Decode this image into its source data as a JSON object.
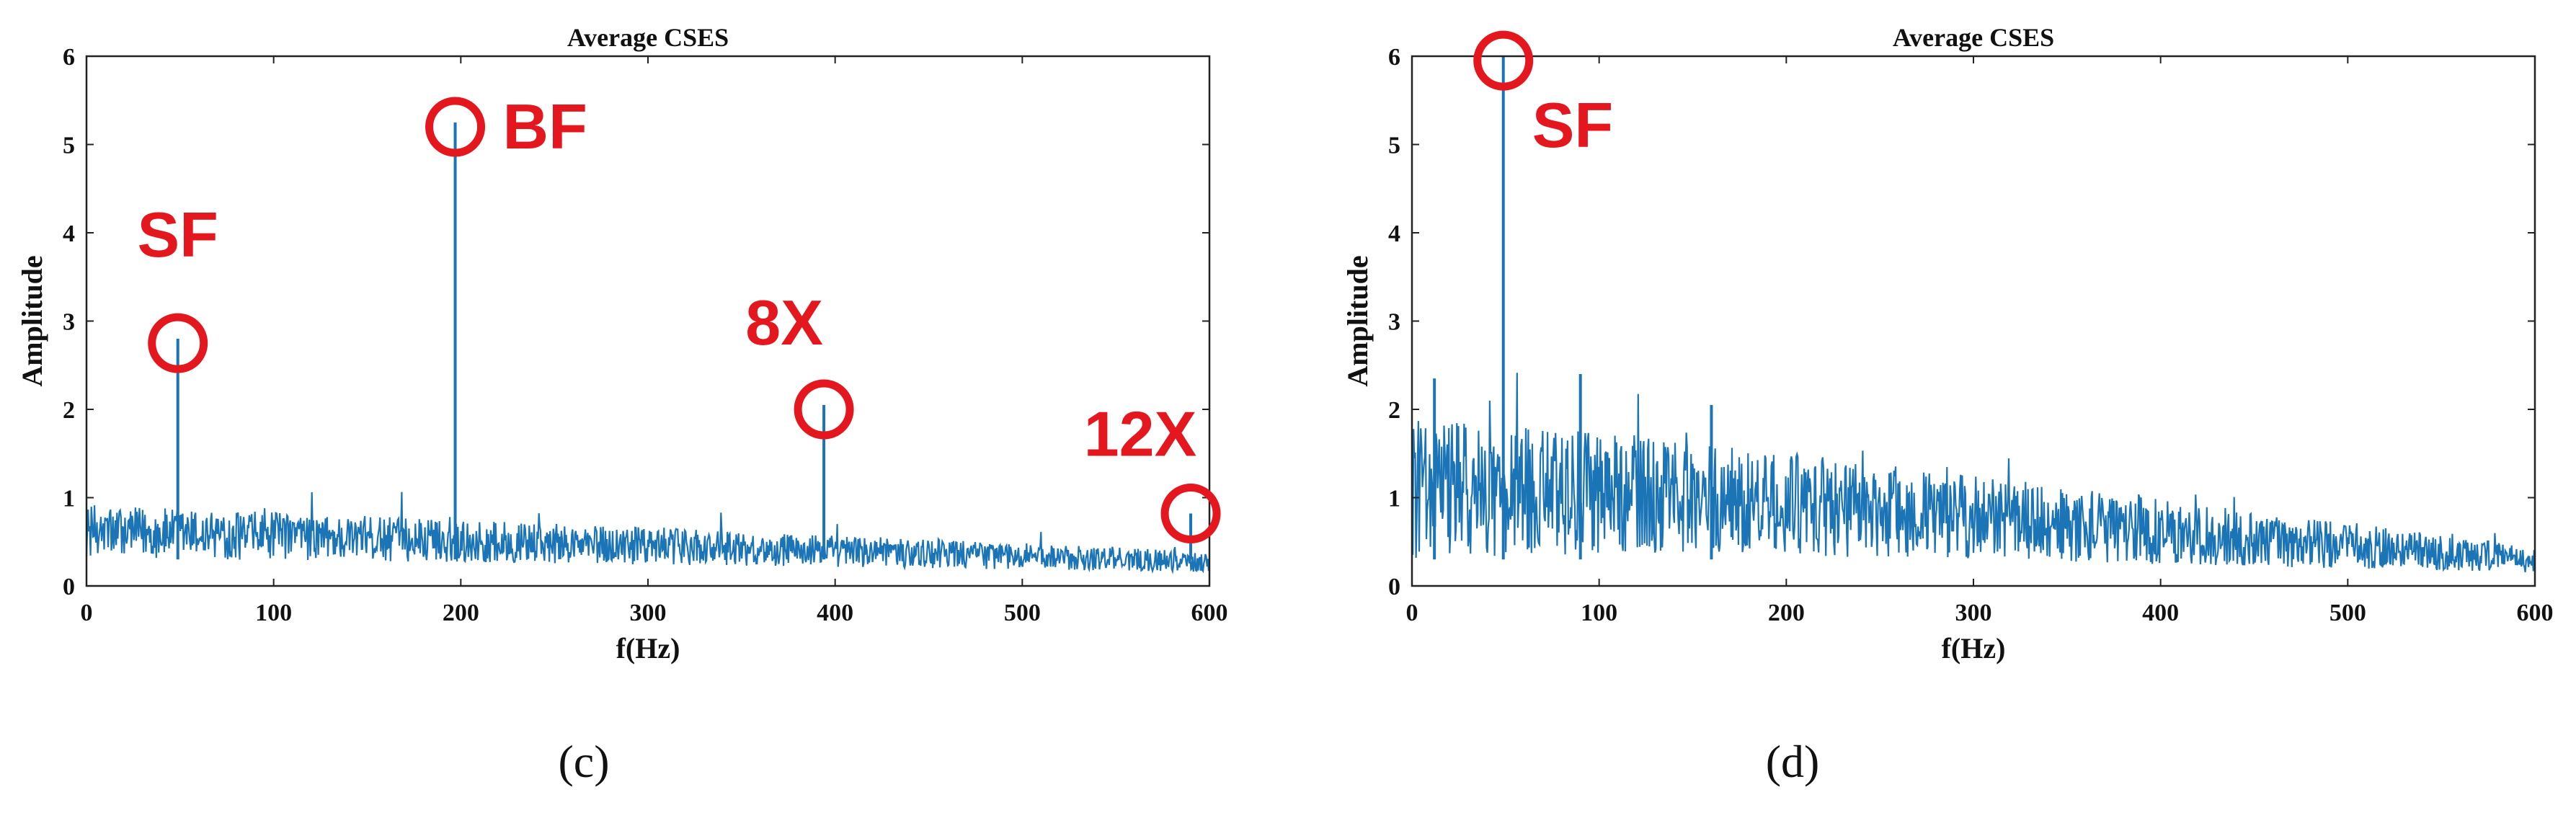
{
  "chart_data": [
    {
      "type": "line",
      "title": "Average CSES",
      "xlabel": "f(Hz)",
      "ylabel": "Amplitude",
      "xlim": [
        0,
        600
      ],
      "ylim": [
        0,
        6
      ],
      "xticks": [
        "0",
        "100",
        "200",
        "300",
        "400",
        "500",
        "600"
      ],
      "yticks": [
        "0",
        "1",
        "2",
        "3",
        "4",
        "5",
        "6"
      ],
      "grid": false,
      "line_color": "#1a74b6",
      "noise_envelope": {
        "start": 0.62,
        "end": 0.28,
        "spread_start": 0.3,
        "spread_end": 0.12
      },
      "peaks": [
        {
          "x": 48.8,
          "y": 2.8
        },
        {
          "x": 197,
          "y": 5.25
        },
        {
          "x": 394,
          "y": 2.05
        },
        {
          "x": 590,
          "y": 0.82
        }
      ],
      "annotations": [
        {
          "text": "SF",
          "x": 48.8,
          "y": 2.75
        },
        {
          "text": "BF",
          "x": 197,
          "y": 5.2
        },
        {
          "text": "8X",
          "x": 394,
          "y": 2.0
        },
        {
          "text": "12X",
          "x": 590,
          "y": 0.82
        }
      ],
      "caption": "(c)"
    },
    {
      "type": "line",
      "title": "Average CSES",
      "xlabel": "f(Hz)",
      "ylabel": "Amplitude",
      "xlim": [
        0,
        600
      ],
      "ylim": [
        0,
        6
      ],
      "xticks": [
        "0",
        "100",
        "200",
        "300",
        "400",
        "500",
        "600"
      ],
      "yticks": [
        "0",
        "1",
        "2",
        "3",
        "4",
        "5",
        "6"
      ],
      "grid": false,
      "line_color": "#1a74b6",
      "noise_envelope": {
        "start": 1.1,
        "mid_x": 120,
        "mid": 1.05,
        "end": 0.3,
        "spread_start": 0.8,
        "spread_end": 0.15
      },
      "peaks": [
        {
          "x": 48.8,
          "y": 6.0
        },
        {
          "x": 90,
          "y": 2.4
        },
        {
          "x": 12,
          "y": 2.35
        },
        {
          "x": 160,
          "y": 2.05
        }
      ],
      "annotations": [
        {
          "text": "SF",
          "x": 48.8,
          "y": 5.95
        }
      ],
      "caption": "(d)"
    }
  ]
}
